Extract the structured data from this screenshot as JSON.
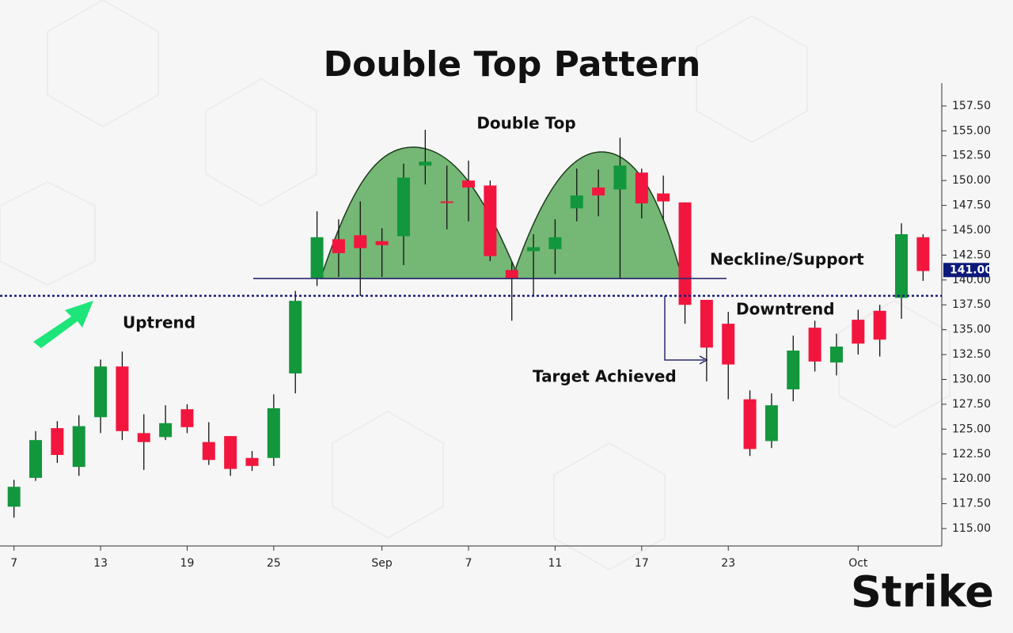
{
  "chart_data": {
    "type": "candlestick",
    "title": "Double Top Pattern",
    "categories": [
      "7",
      null,
      null,
      null,
      "13",
      null,
      null,
      null,
      "19",
      null,
      null,
      null,
      "25",
      null,
      null,
      null,
      null,
      "Sep",
      null,
      null,
      null,
      "7",
      null,
      null,
      null,
      "11",
      null,
      null,
      null,
      "17",
      null,
      null,
      null,
      "23",
      null,
      null,
      null,
      null,
      null,
      "Oct",
      null,
      null,
      null
    ],
    "open": [
      117.2,
      120.1,
      125.1,
      121.2,
      126.2,
      131.3,
      124.6,
      124.2,
      127.0,
      123.7,
      124.3,
      122.1,
      122.1,
      130.6,
      140.2,
      144.1,
      144.5,
      143.9,
      144.4,
      151.5,
      147.9,
      150.0,
      149.5,
      141.0,
      142.9,
      143.1,
      147.2,
      149.3,
      149.1,
      150.8,
      148.7,
      147.8,
      138.0,
      135.6,
      128.0,
      123.8,
      129.0,
      135.2,
      131.7,
      136.0,
      136.9,
      138.2,
      144.3
    ],
    "high": [
      119.9,
      124.8,
      125.8,
      126.4,
      132.0,
      132.8,
      126.5,
      127.4,
      127.5,
      125.7,
      124.3,
      122.8,
      128.5,
      138.9,
      146.9,
      146.1,
      147.9,
      145.2,
      151.7,
      155.1,
      151.5,
      152.0,
      150.0,
      141.8,
      144.6,
      146.1,
      151.2,
      151.1,
      154.3,
      151.2,
      150.5,
      147.8,
      138.0,
      136.8,
      128.9,
      128.6,
      134.4,
      135.9,
      134.6,
      137.0,
      137.5,
      145.7,
      144.6
    ],
    "low": [
      116.1,
      119.8,
      121.6,
      120.3,
      124.6,
      123.9,
      120.9,
      123.9,
      124.6,
      121.4,
      120.3,
      120.8,
      121.3,
      128.6,
      139.4,
      140.3,
      138.4,
      140.3,
      141.5,
      149.6,
      145.1,
      145.9,
      141.9,
      135.9,
      138.3,
      140.6,
      145.9,
      146.4,
      140.2,
      146.2,
      146.1,
      135.6,
      129.8,
      128.0,
      122.3,
      123.1,
      127.8,
      130.8,
      130.4,
      132.5,
      132.3,
      136.1,
      139.9
    ],
    "close": [
      119.2,
      123.9,
      122.4,
      125.3,
      131.3,
      124.8,
      123.7,
      125.6,
      125.2,
      121.9,
      121.0,
      121.3,
      127.1,
      137.9,
      144.3,
      142.7,
      143.2,
      143.5,
      150.3,
      151.9,
      147.8,
      149.3,
      142.4,
      140.2,
      143.3,
      144.3,
      148.5,
      148.5,
      151.5,
      147.7,
      147.9,
      137.5,
      133.2,
      131.5,
      123.0,
      127.4,
      132.9,
      131.8,
      133.3,
      133.6,
      134.0,
      144.6,
      140.9
    ],
    "up_color": "#12973c",
    "down_color": "#f2163e",
    "ylim": [
      113.25,
      159.8
    ],
    "yticks": [
      {
        "value": 115,
        "label": "115.00"
      },
      {
        "value": 117.5,
        "label": "117.50"
      },
      {
        "value": 120,
        "label": "120.00"
      },
      {
        "value": 122.5,
        "label": "122.50"
      },
      {
        "value": 125,
        "label": "125.00"
      },
      {
        "value": 127.5,
        "label": "127.50"
      },
      {
        "value": 130,
        "label": "130.00"
      },
      {
        "value": 132.5,
        "label": "132.50"
      },
      {
        "value": 135,
        "label": "135.00"
      },
      {
        "value": 137.5,
        "label": "137.50"
      },
      {
        "value": 140,
        "label": "140.00"
      },
      {
        "value": 142.5,
        "label": "142.50"
      },
      {
        "value": 145,
        "label": "145.00"
      },
      {
        "value": 147.5,
        "label": "147.50"
      },
      {
        "value": 150,
        "label": "150.00"
      },
      {
        "value": 152.5,
        "label": "152.50"
      },
      {
        "value": 155,
        "label": "155.00"
      },
      {
        "value": 157.5,
        "label": "157.50"
      }
    ],
    "current_price": {
      "value": 141,
      "label": "141.00"
    },
    "support_level": 138.4,
    "neckline": 140.15,
    "annotations": {
      "double_top": "Double Top",
      "neckline": "Neckline/Support",
      "uptrend": "Uptrend",
      "downtrend": "Downtrend",
      "target": "Target Achieved"
    },
    "brand": "Strike"
  }
}
